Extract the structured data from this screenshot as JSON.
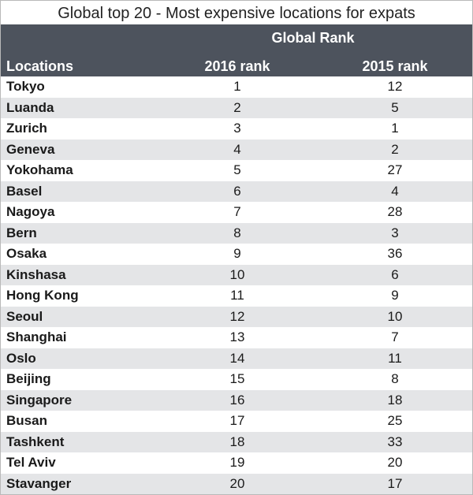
{
  "chart_data": {
    "type": "table",
    "title": "Global top 20 - Most expensive locations for expats",
    "group_header": "Global Rank",
    "columns": [
      "Locations",
      "2016 rank",
      "2015 rank"
    ],
    "rows": [
      {
        "location": "Tokyo",
        "rank_2016": "1",
        "rank_2015": "12"
      },
      {
        "location": "Luanda",
        "rank_2016": "2",
        "rank_2015": "5"
      },
      {
        "location": "Zurich",
        "rank_2016": "3",
        "rank_2015": "1"
      },
      {
        "location": "Geneva",
        "rank_2016": "4",
        "rank_2015": "2"
      },
      {
        "location": "Yokohama",
        "rank_2016": "5",
        "rank_2015": "27"
      },
      {
        "location": "Basel",
        "rank_2016": "6",
        "rank_2015": "4"
      },
      {
        "location": "Nagoya",
        "rank_2016": "7",
        "rank_2015": "28"
      },
      {
        "location": "Bern",
        "rank_2016": "8",
        "rank_2015": "3"
      },
      {
        "location": "Osaka",
        "rank_2016": "9",
        "rank_2015": "36"
      },
      {
        "location": "Kinshasa",
        "rank_2016": "10",
        "rank_2015": "6"
      },
      {
        "location": "Hong Kong",
        "rank_2016": "11",
        "rank_2015": "9"
      },
      {
        "location": "Seoul",
        "rank_2016": "12",
        "rank_2015": "10"
      },
      {
        "location": "Shanghai",
        "rank_2016": "13",
        "rank_2015": "7"
      },
      {
        "location": "Oslo",
        "rank_2016": "14",
        "rank_2015": "11"
      },
      {
        "location": "Beijing",
        "rank_2016": "15",
        "rank_2015": "8"
      },
      {
        "location": "Singapore",
        "rank_2016": "16",
        "rank_2015": "18"
      },
      {
        "location": "Busan",
        "rank_2016": "17",
        "rank_2015": "25"
      },
      {
        "location": "Tashkent",
        "rank_2016": "18",
        "rank_2015": "33"
      },
      {
        "location": "Tel Aviv",
        "rank_2016": "19",
        "rank_2015": "20"
      },
      {
        "location": "Stavanger",
        "rank_2016": "20",
        "rank_2015": "17"
      }
    ]
  },
  "colors": {
    "header_bg": "#4d535d",
    "header_text": "#ffffff",
    "stripe": "#e4e5e7",
    "border": "#b9b9b9"
  }
}
